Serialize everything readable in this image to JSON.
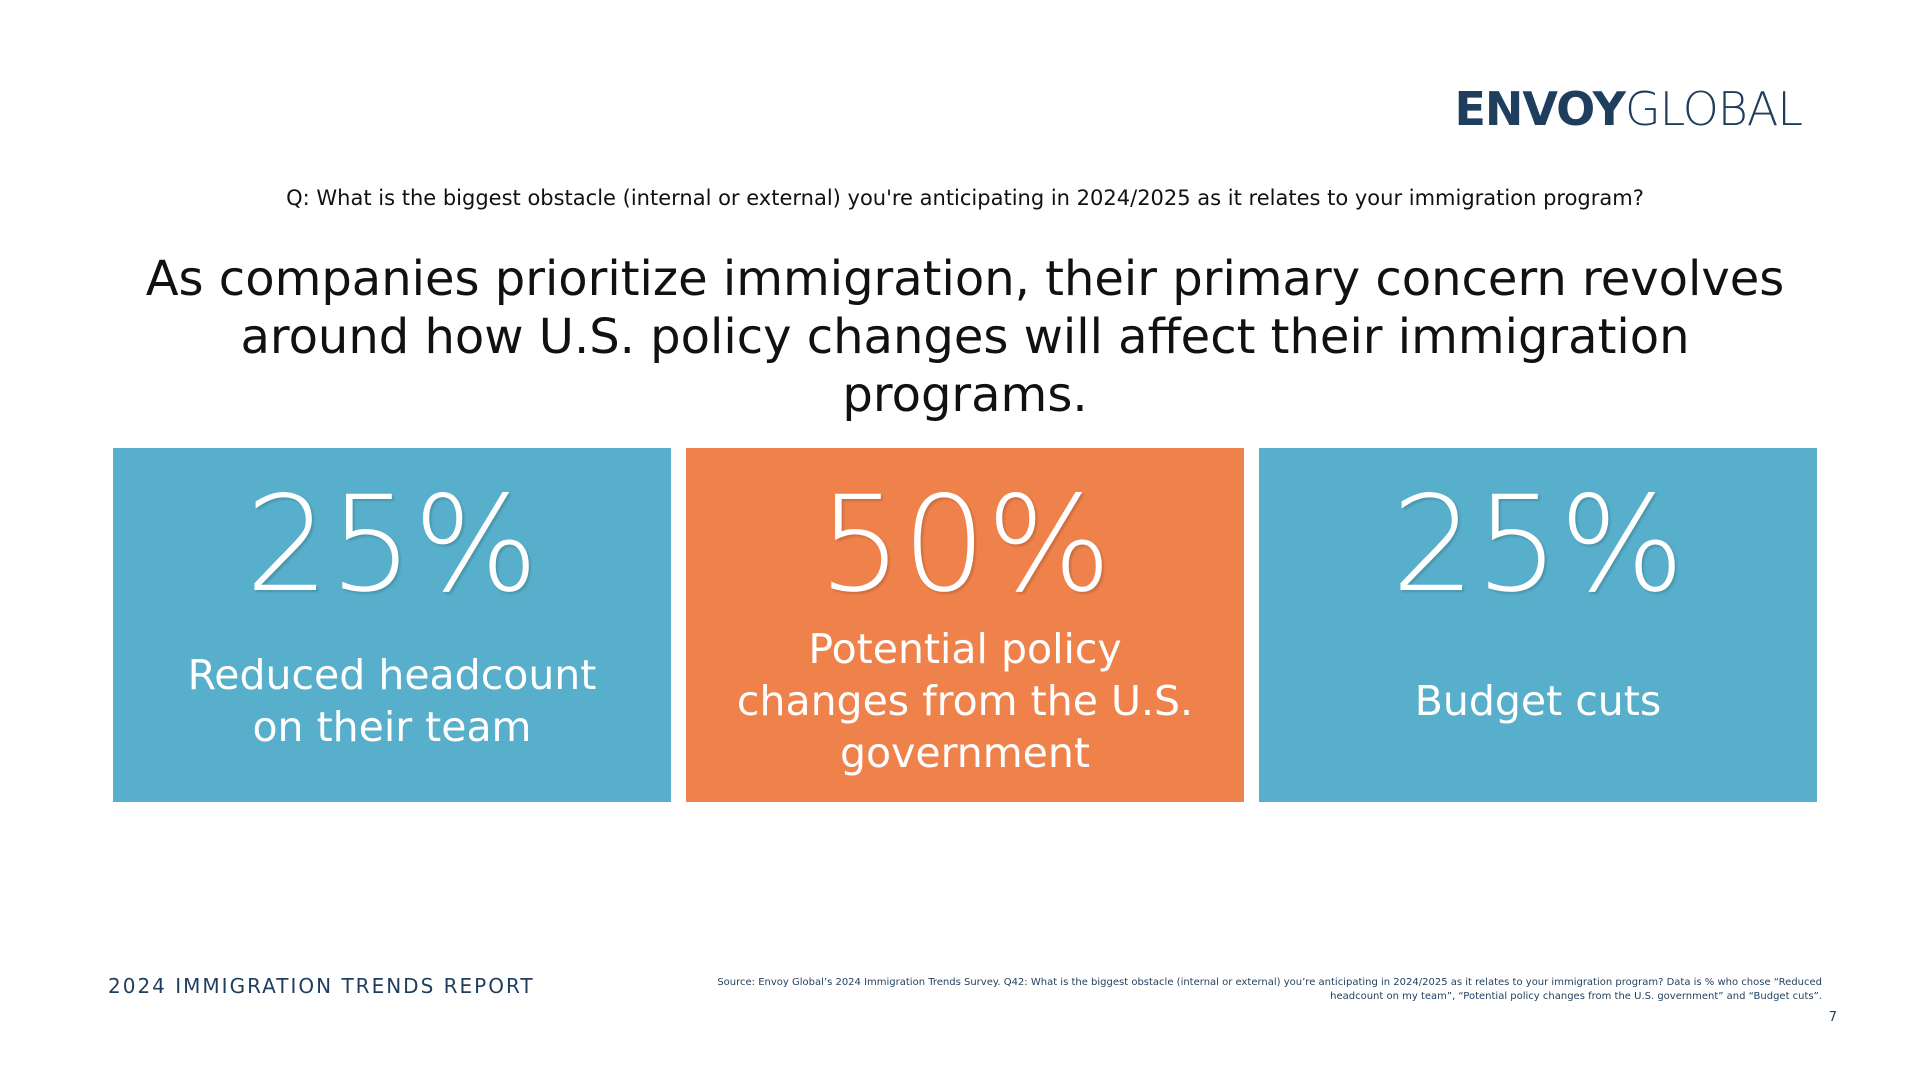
{
  "logo": {
    "bold": "ENVOY",
    "light": "GLOBAL"
  },
  "question": "Q: What is the biggest obstacle (internal or external) you're anticipating in 2024/2025 as it relates to your immigration program?",
  "headline": "As companies prioritize immigration, their primary concern revolves around how U.S. policy changes will affect their immigration programs.",
  "cards": [
    {
      "value": "25%",
      "label": "Reduced headcount on their team",
      "color": "#57afcb"
    },
    {
      "value": "50%",
      "label": "Potential policy changes from the U.S. government",
      "color": "#ef814b"
    },
    {
      "value": "25%",
      "label": "Budget cuts",
      "color": "#57afcb"
    }
  ],
  "footer": {
    "report": "2024 IMMIGRATION TRENDS REPORT",
    "source": "Source: Envoy Global’s 2024 Immigration Trends Survey. Q42: What is the biggest obstacle (internal or external) you’re anticipating in 2024/2025 as it relates to your immigration program? Data is % who chose “Reduced headcount on my team”, “Potential policy changes from the U.S. government” and “Budget cuts”.",
    "page": "7"
  }
}
